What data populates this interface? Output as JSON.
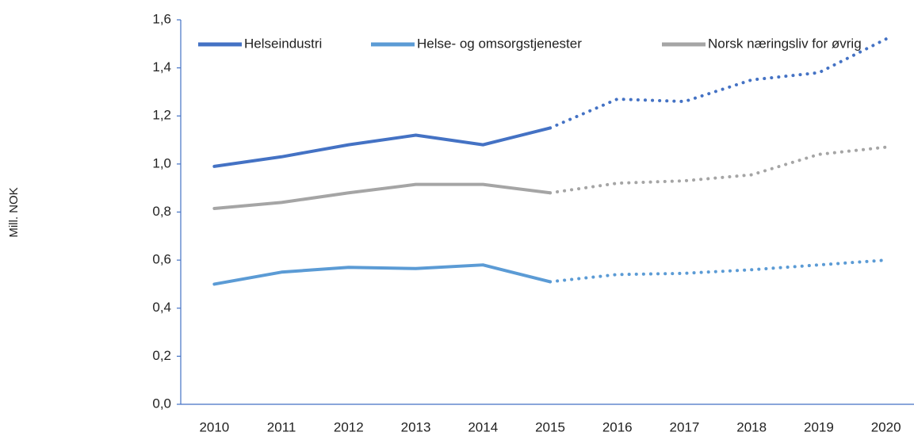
{
  "chart_data": {
    "type": "line",
    "y_label": "Mill. NOK",
    "categories": [
      "2010",
      "2011",
      "2012",
      "2013",
      "2014",
      "2015",
      "2016",
      "2017",
      "2018",
      "2019",
      "2020"
    ],
    "dotted_from": "2015",
    "series": [
      {
        "name": "Helseindustri",
        "color": "#4472c4",
        "values": [
          0.99,
          1.03,
          1.08,
          1.12,
          1.08,
          1.15,
          1.27,
          1.26,
          1.35,
          1.38,
          1.52
        ]
      },
      {
        "name": "Helse- og omsorgstjenester",
        "color": "#5b9bd5",
        "values": [
          0.5,
          0.55,
          0.57,
          0.565,
          0.58,
          0.51,
          0.54,
          0.545,
          0.56,
          0.58,
          0.6
        ]
      },
      {
        "name": "Norsk næringsliv for øvrig",
        "color": "#a5a5a5",
        "values": [
          0.815,
          0.84,
          0.88,
          0.915,
          0.915,
          0.88,
          0.92,
          0.93,
          0.955,
          1.04,
          1.07
        ]
      }
    ],
    "ylim": [
      0,
      1.6
    ],
    "yticks": [
      {
        "value": 0,
        "label": "0,0"
      },
      {
        "value": 0.2,
        "label": "0,2"
      },
      {
        "value": 0.4,
        "label": "0,4"
      },
      {
        "value": 0.6,
        "label": "0,6"
      },
      {
        "value": 0.8,
        "label": "0,8"
      },
      {
        "value": 1.0,
        "label": "1,0"
      },
      {
        "value": 1.2,
        "label": "1,2"
      },
      {
        "value": 1.4,
        "label": "1,4"
      },
      {
        "value": 1.6,
        "label": "1,6"
      }
    ],
    "legend": "top",
    "grid": false
  }
}
